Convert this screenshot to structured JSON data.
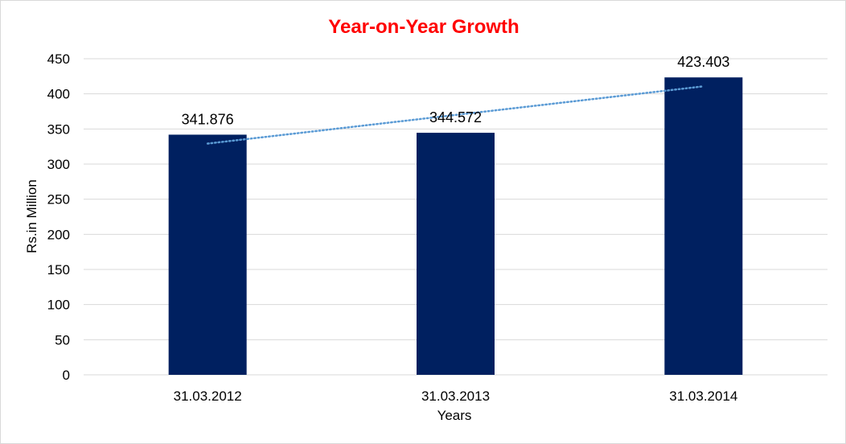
{
  "chart_data": {
    "type": "bar",
    "title": "Year-on-Year Growth",
    "xlabel": "Years",
    "ylabel": "Rs.in Million",
    "categories": [
      "31.03.2012",
      "31.03.2013",
      "31.03.2014"
    ],
    "values": [
      341.876,
      344.572,
      423.403
    ],
    "value_labels": [
      "341.876",
      "344.572",
      "423.403"
    ],
    "ylim": [
      0,
      450
    ],
    "yticks": [
      0,
      50,
      100,
      150,
      200,
      250,
      300,
      350,
      400,
      450
    ],
    "grid": true,
    "legend": "none",
    "trendline": {
      "type": "linear",
      "style": "dotted"
    },
    "colors": {
      "bar": "#002060",
      "title": "#ff0000",
      "trendline": "#5b9bd5",
      "grid": "#d9d9d9"
    }
  }
}
